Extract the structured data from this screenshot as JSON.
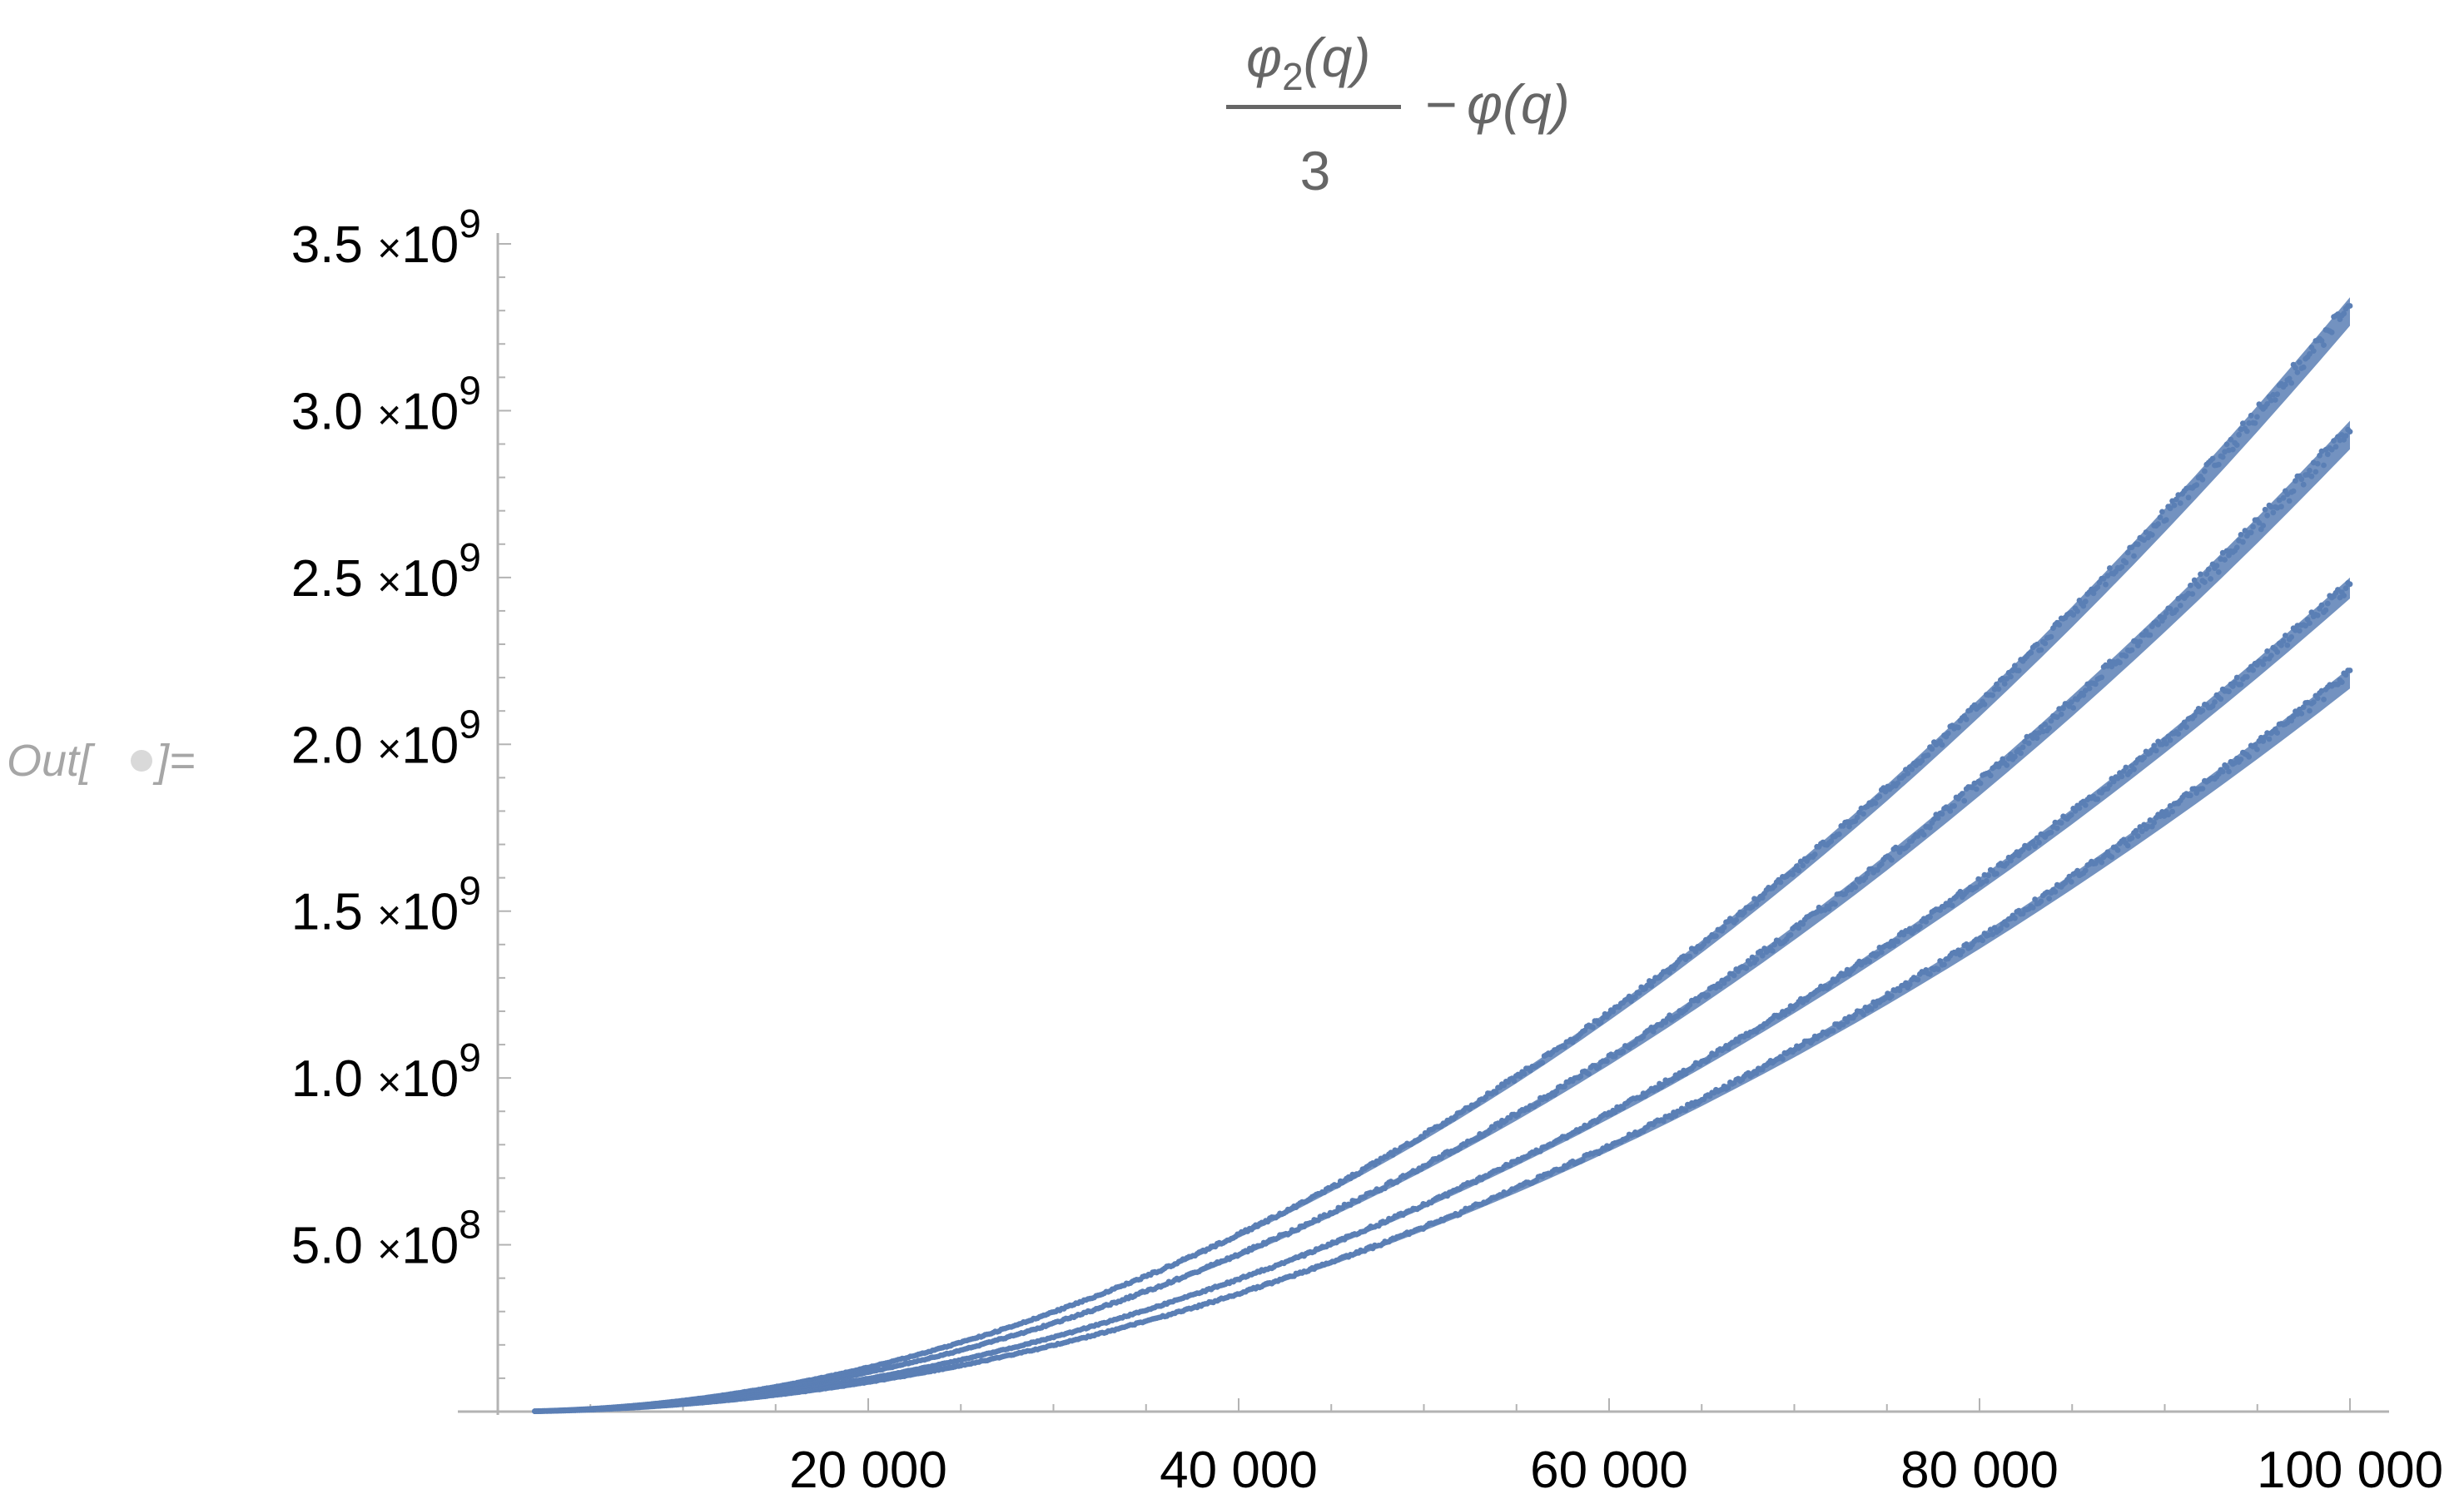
{
  "cell": {
    "out_prefix": "Out[",
    "out_suffix": "]="
  },
  "chart_data": {
    "type": "scatter",
    "title": {
      "numerator_func": "φ",
      "numerator_sub": "2",
      "numerator_arg": "(q)",
      "denominator": "3",
      "minus": "−",
      "rhs_func": "φ",
      "rhs_arg": "(q)"
    },
    "xlim": [
      0,
      100000
    ],
    "ylim": [
      0,
      3500000000
    ],
    "x_ticks": [
      {
        "value": 20000,
        "label": "20 000"
      },
      {
        "value": 40000,
        "label": "40 000"
      },
      {
        "value": 60000,
        "label": "60 000"
      },
      {
        "value": 80000,
        "label": "80 000"
      },
      {
        "value": 100000,
        "label": "100 000"
      }
    ],
    "y_ticks": [
      {
        "value": 500000000,
        "mantissa": "5.0",
        "times": "×10",
        "exp": "8"
      },
      {
        "value": 1000000000,
        "mantissa": "1.0",
        "times": "×10",
        "exp": "9"
      },
      {
        "value": 1500000000,
        "mantissa": "1.5",
        "times": "×10",
        "exp": "9"
      },
      {
        "value": 2000000000,
        "mantissa": "2.0",
        "times": "×10",
        "exp": "9"
      },
      {
        "value": 2500000000,
        "mantissa": "2.5",
        "times": "×10",
        "exp": "9"
      },
      {
        "value": 3000000000,
        "mantissa": "3.0",
        "times": "×10",
        "exp": "9"
      },
      {
        "value": 3500000000,
        "mantissa": "3.5",
        "times": "×10",
        "exp": "9"
      }
    ],
    "series": [
      {
        "x_end": 100000,
        "y_top": 3340000000,
        "y_bottom": 3150000000
      },
      {
        "x_end": 100000,
        "y_top": 2970000000,
        "y_bottom": 2780000000
      },
      {
        "x_end": 100000,
        "y_top": 2500000000,
        "y_bottom": 2360000000
      },
      {
        "x_end": 100000,
        "y_top": 2230000000,
        "y_bottom": 2090000000
      }
    ],
    "point_color": "#5b7fb5",
    "axis_color": "#b3b3b3",
    "grid": false
  }
}
